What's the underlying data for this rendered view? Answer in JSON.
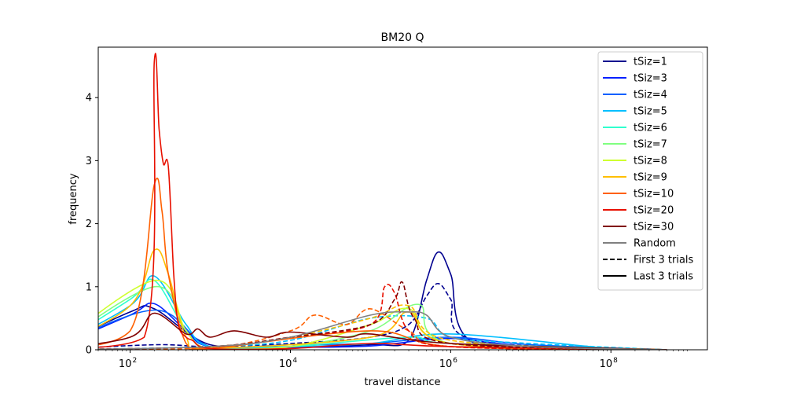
{
  "chart_data": {
    "type": "line",
    "title": "BM20 Q",
    "xlabel": "travel distance",
    "ylabel": "frequency",
    "xscale": "log",
    "xlim": [
      40,
      1600000000
    ],
    "ylim": [
      0,
      4.8
    ],
    "x_ticks": [
      {
        "value": 100,
        "base": "10",
        "exp": "2"
      },
      {
        "value": 10000,
        "base": "10",
        "exp": "4"
      },
      {
        "value": 1000000,
        "base": "10",
        "exp": "6"
      },
      {
        "value": 100000000,
        "base": "10",
        "exp": "8"
      }
    ],
    "y_ticks": [
      0,
      1,
      2,
      3,
      4
    ],
    "grid": false,
    "legend_position": "upper right",
    "legend": [
      {
        "label": "tSiz=1",
        "color": "#00008f",
        "dash": false
      },
      {
        "label": "tSiz=3",
        "color": "#0020ff",
        "dash": false
      },
      {
        "label": "tSiz=4",
        "color": "#0060ff",
        "dash": false
      },
      {
        "label": "tSiz=5",
        "color": "#00bfff",
        "dash": false
      },
      {
        "label": "tSiz=6",
        "color": "#30ffcf",
        "dash": false
      },
      {
        "label": "tSiz=7",
        "color": "#80ff80",
        "dash": false
      },
      {
        "label": "tSiz=8",
        "color": "#cfff30",
        "dash": false
      },
      {
        "label": "tSiz=9",
        "color": "#ffbf00",
        "dash": false
      },
      {
        "label": "tSiz=10",
        "color": "#ff6000",
        "dash": false
      },
      {
        "label": "tSiz=20",
        "color": "#e81000",
        "dash": false
      },
      {
        "label": "tSiz=30",
        "color": "#800000",
        "dash": false
      },
      {
        "label": "Random",
        "color": "#808080",
        "dash": false
      },
      {
        "label": "First 3 trials",
        "color": "#000000",
        "dash": true
      },
      {
        "label": "Last 3 trials",
        "color": "#000000",
        "dash": false
      }
    ],
    "series": [
      {
        "name": "tSiz=1",
        "color": "#00008f",
        "dash": false,
        "x": [
          10,
          100,
          200,
          1000,
          10000,
          100000,
          300000,
          500000,
          700000,
          1000000,
          2000000,
          100000000,
          500000000
        ],
        "y": [
          0,
          0.6,
          0.65,
          0.08,
          0.05,
          0.08,
          0.15,
          1.1,
          1.55,
          1.2,
          0.1,
          0.01,
          0
        ]
      },
      {
        "name": "tSiz=1",
        "color": "#00008f",
        "dash": true,
        "x": [
          10,
          200,
          1000,
          10000,
          100000,
          300000,
          500000,
          700000,
          1000000,
          2000000,
          500000000
        ],
        "y": [
          0,
          0.08,
          0.05,
          0.1,
          0.2,
          0.4,
          0.85,
          1.05,
          0.8,
          0.15,
          0
        ]
      },
      {
        "name": "tSiz=3",
        "color": "#0020ff",
        "dash": false,
        "x": [
          10,
          100,
          200,
          500,
          1000,
          10000,
          100000,
          1000000,
          10000000,
          500000000
        ],
        "y": [
          0,
          0.55,
          0.73,
          0.3,
          0.05,
          0.04,
          0.06,
          0.18,
          0.05,
          0
        ]
      },
      {
        "name": "tSiz=4",
        "color": "#0060ff",
        "dash": false,
        "x": [
          10,
          200,
          1000,
          10000,
          100000,
          1000000,
          10000000,
          500000000
        ],
        "y": [
          0,
          0.63,
          0.05,
          0.08,
          0.1,
          0.2,
          0.08,
          0
        ]
      },
      {
        "name": "tSiz=5",
        "color": "#00bfff",
        "dash": false,
        "x": [
          10,
          100,
          200,
          500,
          1000,
          10000,
          100000,
          1000000,
          100000000,
          500000000
        ],
        "y": [
          0,
          0.7,
          1.17,
          0.4,
          0.05,
          0.05,
          0.1,
          0.25,
          0.02,
          0
        ]
      },
      {
        "name": "tSiz=5",
        "color": "#00bfff",
        "dash": true,
        "x": [
          10,
          1000,
          10000,
          100000,
          500000,
          1000000,
          10000000,
          500000000
        ],
        "y": [
          0,
          0.05,
          0.15,
          0.5,
          0.5,
          0.2,
          0.1,
          0
        ]
      },
      {
        "name": "tSiz=6",
        "color": "#30ffcf",
        "dash": false,
        "x": [
          10,
          100,
          200,
          500,
          1000,
          10000,
          300000,
          1000000,
          500000000
        ],
        "y": [
          0,
          0.8,
          1.1,
          0.3,
          0.02,
          0.05,
          0.2,
          0.1,
          0
        ]
      },
      {
        "name": "tSiz=7",
        "color": "#80ff80",
        "dash": false,
        "x": [
          10,
          200,
          500,
          1000,
          10000,
          100000,
          400000,
          1000000,
          500000000
        ],
        "y": [
          0,
          1.0,
          0.3,
          0.02,
          0.05,
          0.3,
          0.72,
          0.1,
          0
        ]
      },
      {
        "name": "tSiz=8",
        "color": "#cfff30",
        "dash": false,
        "x": [
          10,
          200,
          500,
          1000,
          10000,
          100000,
          300000,
          1000000,
          500000000
        ],
        "y": [
          0,
          1.1,
          0.3,
          0.02,
          0.05,
          0.4,
          0.65,
          0.1,
          0
        ]
      },
      {
        "name": "tSiz=9",
        "color": "#ffbf00",
        "dash": false,
        "x": [
          10,
          100,
          200,
          300,
          500,
          1000,
          100000,
          300000,
          1000000,
          500000000
        ],
        "y": [
          0,
          0.7,
          1.58,
          1.2,
          0.2,
          0.03,
          0.2,
          0.6,
          0.1,
          0
        ]
      },
      {
        "name": "tSiz=9",
        "color": "#ffbf00",
        "dash": true,
        "x": [
          10,
          1000,
          10000,
          100000,
          300000,
          1000000,
          500000000
        ],
        "y": [
          0,
          0.05,
          0.2,
          0.5,
          0.7,
          0.15,
          0
        ]
      },
      {
        "name": "tSiz=10",
        "color": "#ff6000",
        "dash": false,
        "x": [
          10,
          100,
          200,
          250,
          300,
          500,
          1000,
          100000,
          1000000,
          500000000
        ],
        "y": [
          0,
          0.3,
          2.62,
          2.2,
          1.2,
          0.1,
          0.02,
          0.3,
          0.05,
          0
        ]
      },
      {
        "name": "tSiz=10",
        "color": "#ff6000",
        "dash": true,
        "x": [
          10,
          1000,
          10000,
          20000,
          50000,
          100000,
          300000,
          1000000,
          500000000
        ],
        "y": [
          0,
          0.03,
          0.3,
          0.55,
          0.4,
          0.65,
          0.3,
          0.05,
          0
        ]
      },
      {
        "name": "tSiz=20",
        "color": "#e81000",
        "dash": false,
        "x": [
          10,
          150,
          200,
          230,
          260,
          300,
          350,
          400,
          500,
          600,
          1000,
          10000,
          100000,
          1000000,
          500000000
        ],
        "y": [
          0,
          0.2,
          4.57,
          3.5,
          2.95,
          2.9,
          1.2,
          0.4,
          0.2,
          0.15,
          0.02,
          0.02,
          0.1,
          0.05,
          0
        ]
      },
      {
        "name": "tSiz=20",
        "color": "#e81000",
        "dash": true,
        "x": [
          10,
          1000,
          10000,
          100000,
          150000,
          200000,
          300000,
          1000000,
          500000000
        ],
        "y": [
          0,
          0.05,
          0.2,
          0.4,
          1.0,
          0.9,
          0.3,
          0.05,
          0
        ]
      },
      {
        "name": "tSiz=30",
        "color": "#800000",
        "dash": false,
        "x": [
          10,
          100,
          200,
          500,
          700,
          1000,
          2000,
          5000,
          10000,
          50000,
          100000,
          1000000,
          500000000
        ],
        "y": [
          0,
          0.2,
          0.58,
          0.25,
          0.33,
          0.2,
          0.3,
          0.2,
          0.28,
          0.2,
          0.25,
          0.1,
          0
        ]
      },
      {
        "name": "tSiz=30",
        "color": "#800000",
        "dash": true,
        "x": [
          10,
          1000,
          10000,
          100000,
          200000,
          250000,
          350000,
          1000000,
          500000000
        ],
        "y": [
          0,
          0.05,
          0.2,
          0.4,
          0.8,
          1.07,
          0.5,
          0.1,
          0
        ]
      },
      {
        "name": "Random",
        "color": "#808080",
        "dash": false,
        "x": [
          10,
          1000,
          10000,
          100000,
          300000,
          500000,
          1000000,
          10000000,
          500000000
        ],
        "y": [
          0,
          0.05,
          0.2,
          0.55,
          0.6,
          0.55,
          0.2,
          0.05,
          0
        ]
      }
    ]
  }
}
